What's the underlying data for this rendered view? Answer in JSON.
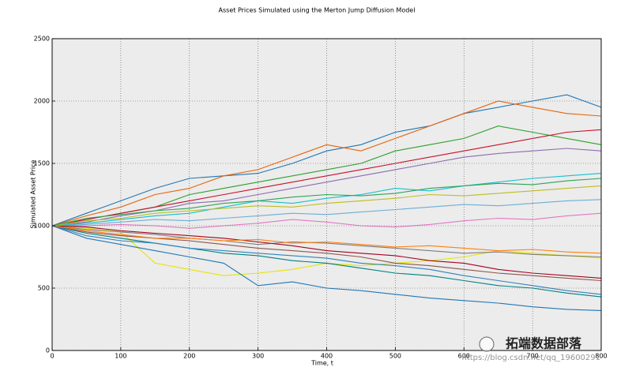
{
  "chart_data": {
    "type": "line",
    "title": "Asset Prices Simulated using the Merton Jump Diffusion Model",
    "x_label": "Time, t",
    "y_label": "Simulated Asset Price",
    "xlim": [
      0,
      800
    ],
    "ylim": [
      0,
      2500
    ],
    "xticks": [
      0,
      100,
      200,
      300,
      400,
      500,
      600,
      700,
      800
    ],
    "yticks": [
      0,
      500,
      1000,
      1500,
      2000,
      2500
    ],
    "grid": true,
    "annotations": [
      "拓端数据部落",
      "https://blog.csdn.net/qq_19600291"
    ],
    "x": [
      0,
      50,
      100,
      150,
      200,
      250,
      300,
      350,
      400,
      450,
      500,
      550,
      600,
      650,
      700,
      750,
      800
    ],
    "series": [
      {
        "color": "#1f77b4",
        "values": [
          1000,
          1100,
          1200,
          1300,
          1380,
          1400,
          1420,
          1500,
          1600,
          1650,
          1750,
          1800,
          1900,
          1950,
          2000,
          2050,
          1950
        ]
      },
      {
        "color": "#e6640a",
        "values": [
          1000,
          1080,
          1150,
          1250,
          1300,
          1400,
          1450,
          1550,
          1650,
          1600,
          1700,
          1800,
          1900,
          2000,
          1950,
          1900,
          1880
        ]
      },
      {
        "color": "#2ca02c",
        "values": [
          1000,
          1050,
          1100,
          1150,
          1250,
          1300,
          1350,
          1400,
          1450,
          1500,
          1600,
          1650,
          1700,
          1800,
          1750,
          1700,
          1650
        ]
      },
      {
        "color": "#c8102e",
        "values": [
          1000,
          1050,
          1100,
          1150,
          1200,
          1250,
          1300,
          1350,
          1400,
          1450,
          1500,
          1550,
          1600,
          1650,
          1700,
          1750,
          1770
        ]
      },
      {
        "color": "#8c6bb1",
        "values": [
          1000,
          1030,
          1080,
          1120,
          1180,
          1200,
          1250,
          1300,
          1350,
          1400,
          1450,
          1500,
          1550,
          1580,
          1600,
          1620,
          1600
        ]
      },
      {
        "color": "#e5e500",
        "values": [
          1000,
          980,
          950,
          700,
          650,
          600,
          620,
          650,
          700,
          680,
          700,
          720,
          750,
          800,
          780,
          760,
          740
        ]
      },
      {
        "color": "#17becf",
        "values": [
          1000,
          1020,
          1050,
          1080,
          1100,
          1150,
          1200,
          1180,
          1220,
          1250,
          1300,
          1280,
          1320,
          1350,
          1380,
          1400,
          1420
        ]
      },
      {
        "color": "#1f77b4",
        "values": [
          1000,
          900,
          850,
          800,
          750,
          700,
          520,
          550,
          500,
          480,
          450,
          420,
          400,
          380,
          350,
          330,
          320
        ]
      },
      {
        "color": "#8c564b",
        "values": [
          1000,
          950,
          920,
          900,
          880,
          850,
          820,
          800,
          780,
          750,
          700,
          680,
          650,
          620,
          600,
          580,
          560
        ]
      },
      {
        "color": "#e377c2",
        "values": [
          1000,
          1000,
          1010,
          1000,
          980,
          1000,
          1020,
          1050,
          1030,
          1000,
          990,
          1010,
          1040,
          1060,
          1050,
          1080,
          1100
        ]
      },
      {
        "color": "#7f7f7f",
        "values": [
          1000,
          970,
          950,
          930,
          900,
          880,
          850,
          870,
          860,
          840,
          820,
          800,
          780,
          790,
          770,
          760,
          750
        ]
      },
      {
        "color": "#bcbd22",
        "values": [
          1000,
          1040,
          1060,
          1100,
          1120,
          1140,
          1160,
          1150,
          1180,
          1200,
          1220,
          1250,
          1240,
          1260,
          1280,
          1300,
          1320
        ]
      },
      {
        "color": "#008080",
        "values": [
          1000,
          940,
          900,
          860,
          820,
          780,
          760,
          720,
          700,
          660,
          620,
          600,
          560,
          520,
          500,
          460,
          430
        ]
      },
      {
        "color": "#a50021",
        "values": [
          1000,
          990,
          960,
          940,
          920,
          900,
          870,
          840,
          800,
          780,
          760,
          720,
          700,
          650,
          620,
          600,
          580
        ]
      },
      {
        "color": "#6baed6",
        "values": [
          1000,
          1010,
          1030,
          1050,
          1040,
          1060,
          1080,
          1100,
          1090,
          1110,
          1130,
          1150,
          1170,
          1160,
          1180,
          1200,
          1210
        ]
      },
      {
        "color": "#ff7f0e",
        "values": [
          1000,
          960,
          930,
          900,
          900,
          880,
          890,
          860,
          870,
          850,
          830,
          840,
          820,
          800,
          810,
          790,
          780
        ]
      },
      {
        "color": "#31a354",
        "values": [
          1000,
          1060,
          1090,
          1120,
          1140,
          1180,
          1200,
          1230,
          1250,
          1240,
          1260,
          1300,
          1320,
          1340,
          1330,
          1360,
          1380
        ]
      },
      {
        "color": "#3182bd",
        "values": [
          1000,
          920,
          880,
          860,
          820,
          800,
          780,
          760,
          740,
          700,
          680,
          650,
          600,
          560,
          520,
          480,
          450
        ]
      }
    ]
  }
}
